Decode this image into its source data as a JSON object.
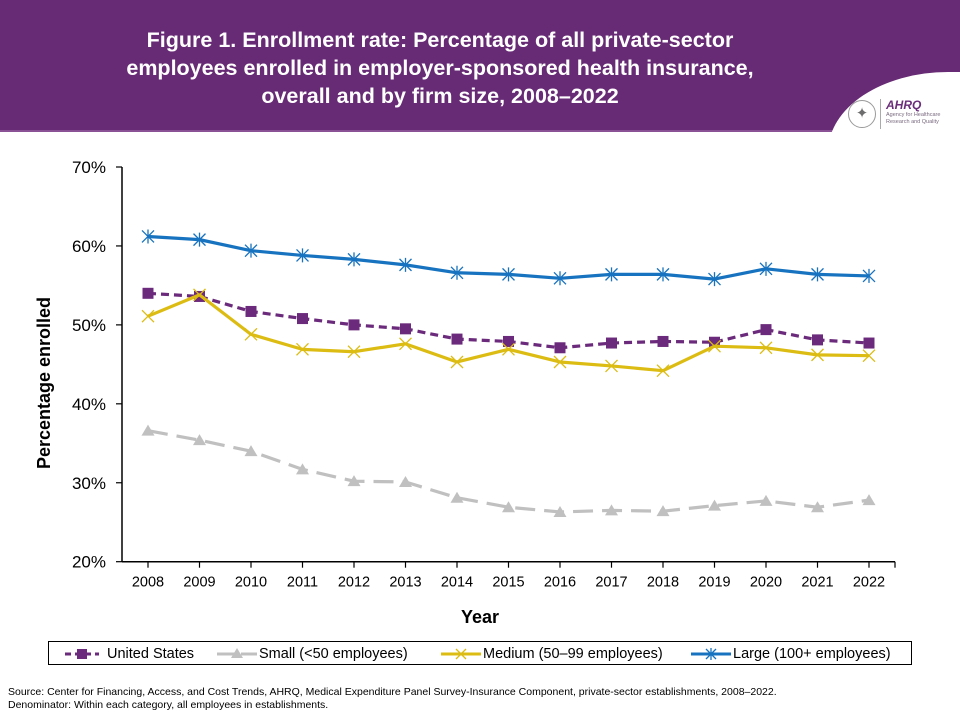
{
  "header": {
    "title_lines": [
      "Figure 1. Enrollment rate: Percentage of all private-sector",
      "employees enrolled in employer-sponsored health insurance,",
      "overall and by firm size, 2008–2022"
    ],
    "logo_text": "AHRQ",
    "logo_subtext": "Agency for Healthcare Research and Quality",
    "background_color": "#672a74"
  },
  "chart_data": {
    "type": "line",
    "title": "Figure 1. Enrollment rate: Percentage of all private-sector employees enrolled in employer-sponsored health insurance, overall and by firm size, 2008–2022",
    "xlabel": "Year",
    "ylabel": "Percentage enrolled",
    "categories": [
      "2008",
      "2009",
      "2010",
      "2011",
      "2012",
      "2013",
      "2014",
      "2015",
      "2016",
      "2017",
      "2018",
      "2019",
      "2020",
      "2021",
      "2022"
    ],
    "ylim": [
      20,
      70
    ],
    "yticks": [
      20,
      30,
      40,
      50,
      60,
      70
    ],
    "ytick_labels": [
      "20%",
      "30%",
      "40%",
      "50%",
      "60%",
      "70%"
    ],
    "grid": false,
    "legend_position": "bottom",
    "series": [
      {
        "name": "United States",
        "color": "#6b2a7b",
        "line_style": "dashed",
        "marker": "square",
        "values": [
          54.0,
          53.6,
          51.7,
          50.8,
          50.0,
          49.5,
          48.2,
          47.9,
          47.1,
          47.7,
          47.9,
          47.8,
          49.4,
          48.1,
          47.7
        ]
      },
      {
        "name": "Small (<50 employees)",
        "color": "#c0c0c0",
        "line_style": "long-dashed",
        "marker": "triangle",
        "values": [
          36.6,
          35.4,
          34.0,
          31.7,
          30.2,
          30.1,
          28.1,
          26.9,
          26.3,
          26.5,
          26.4,
          27.1,
          27.7,
          26.9,
          27.8
        ]
      },
      {
        "name": "Medium (50–99 employees)",
        "color": "#dcbc12",
        "line_style": "solid",
        "marker": "x",
        "values": [
          51.1,
          53.8,
          48.8,
          46.9,
          46.6,
          47.6,
          45.3,
          46.9,
          45.3,
          44.8,
          44.2,
          47.3,
          47.1,
          46.2,
          46.1
        ]
      },
      {
        "name": "Large (100+ employees)",
        "color": "#1773c0",
        "line_style": "solid",
        "marker": "asterisk",
        "values": [
          61.2,
          60.8,
          59.4,
          58.8,
          58.3,
          57.6,
          56.6,
          56.4,
          55.9,
          56.4,
          56.4,
          55.8,
          57.1,
          56.4,
          56.2
        ]
      }
    ]
  },
  "legend": {
    "items": [
      {
        "label": "United States"
      },
      {
        "label": "Small (<50 employees)"
      },
      {
        "label": "Medium (50–99 employees)"
      },
      {
        "label": "Large (100+ employees)"
      }
    ]
  },
  "footer": {
    "source": "Source: Center for Financing, Access, and Cost Trends, AHRQ, Medical Expenditure Panel Survey-Insurance Component, private-sector establishments, 2008–2022.",
    "denominator": "Denominator: Within each category, all employees in establishments."
  }
}
